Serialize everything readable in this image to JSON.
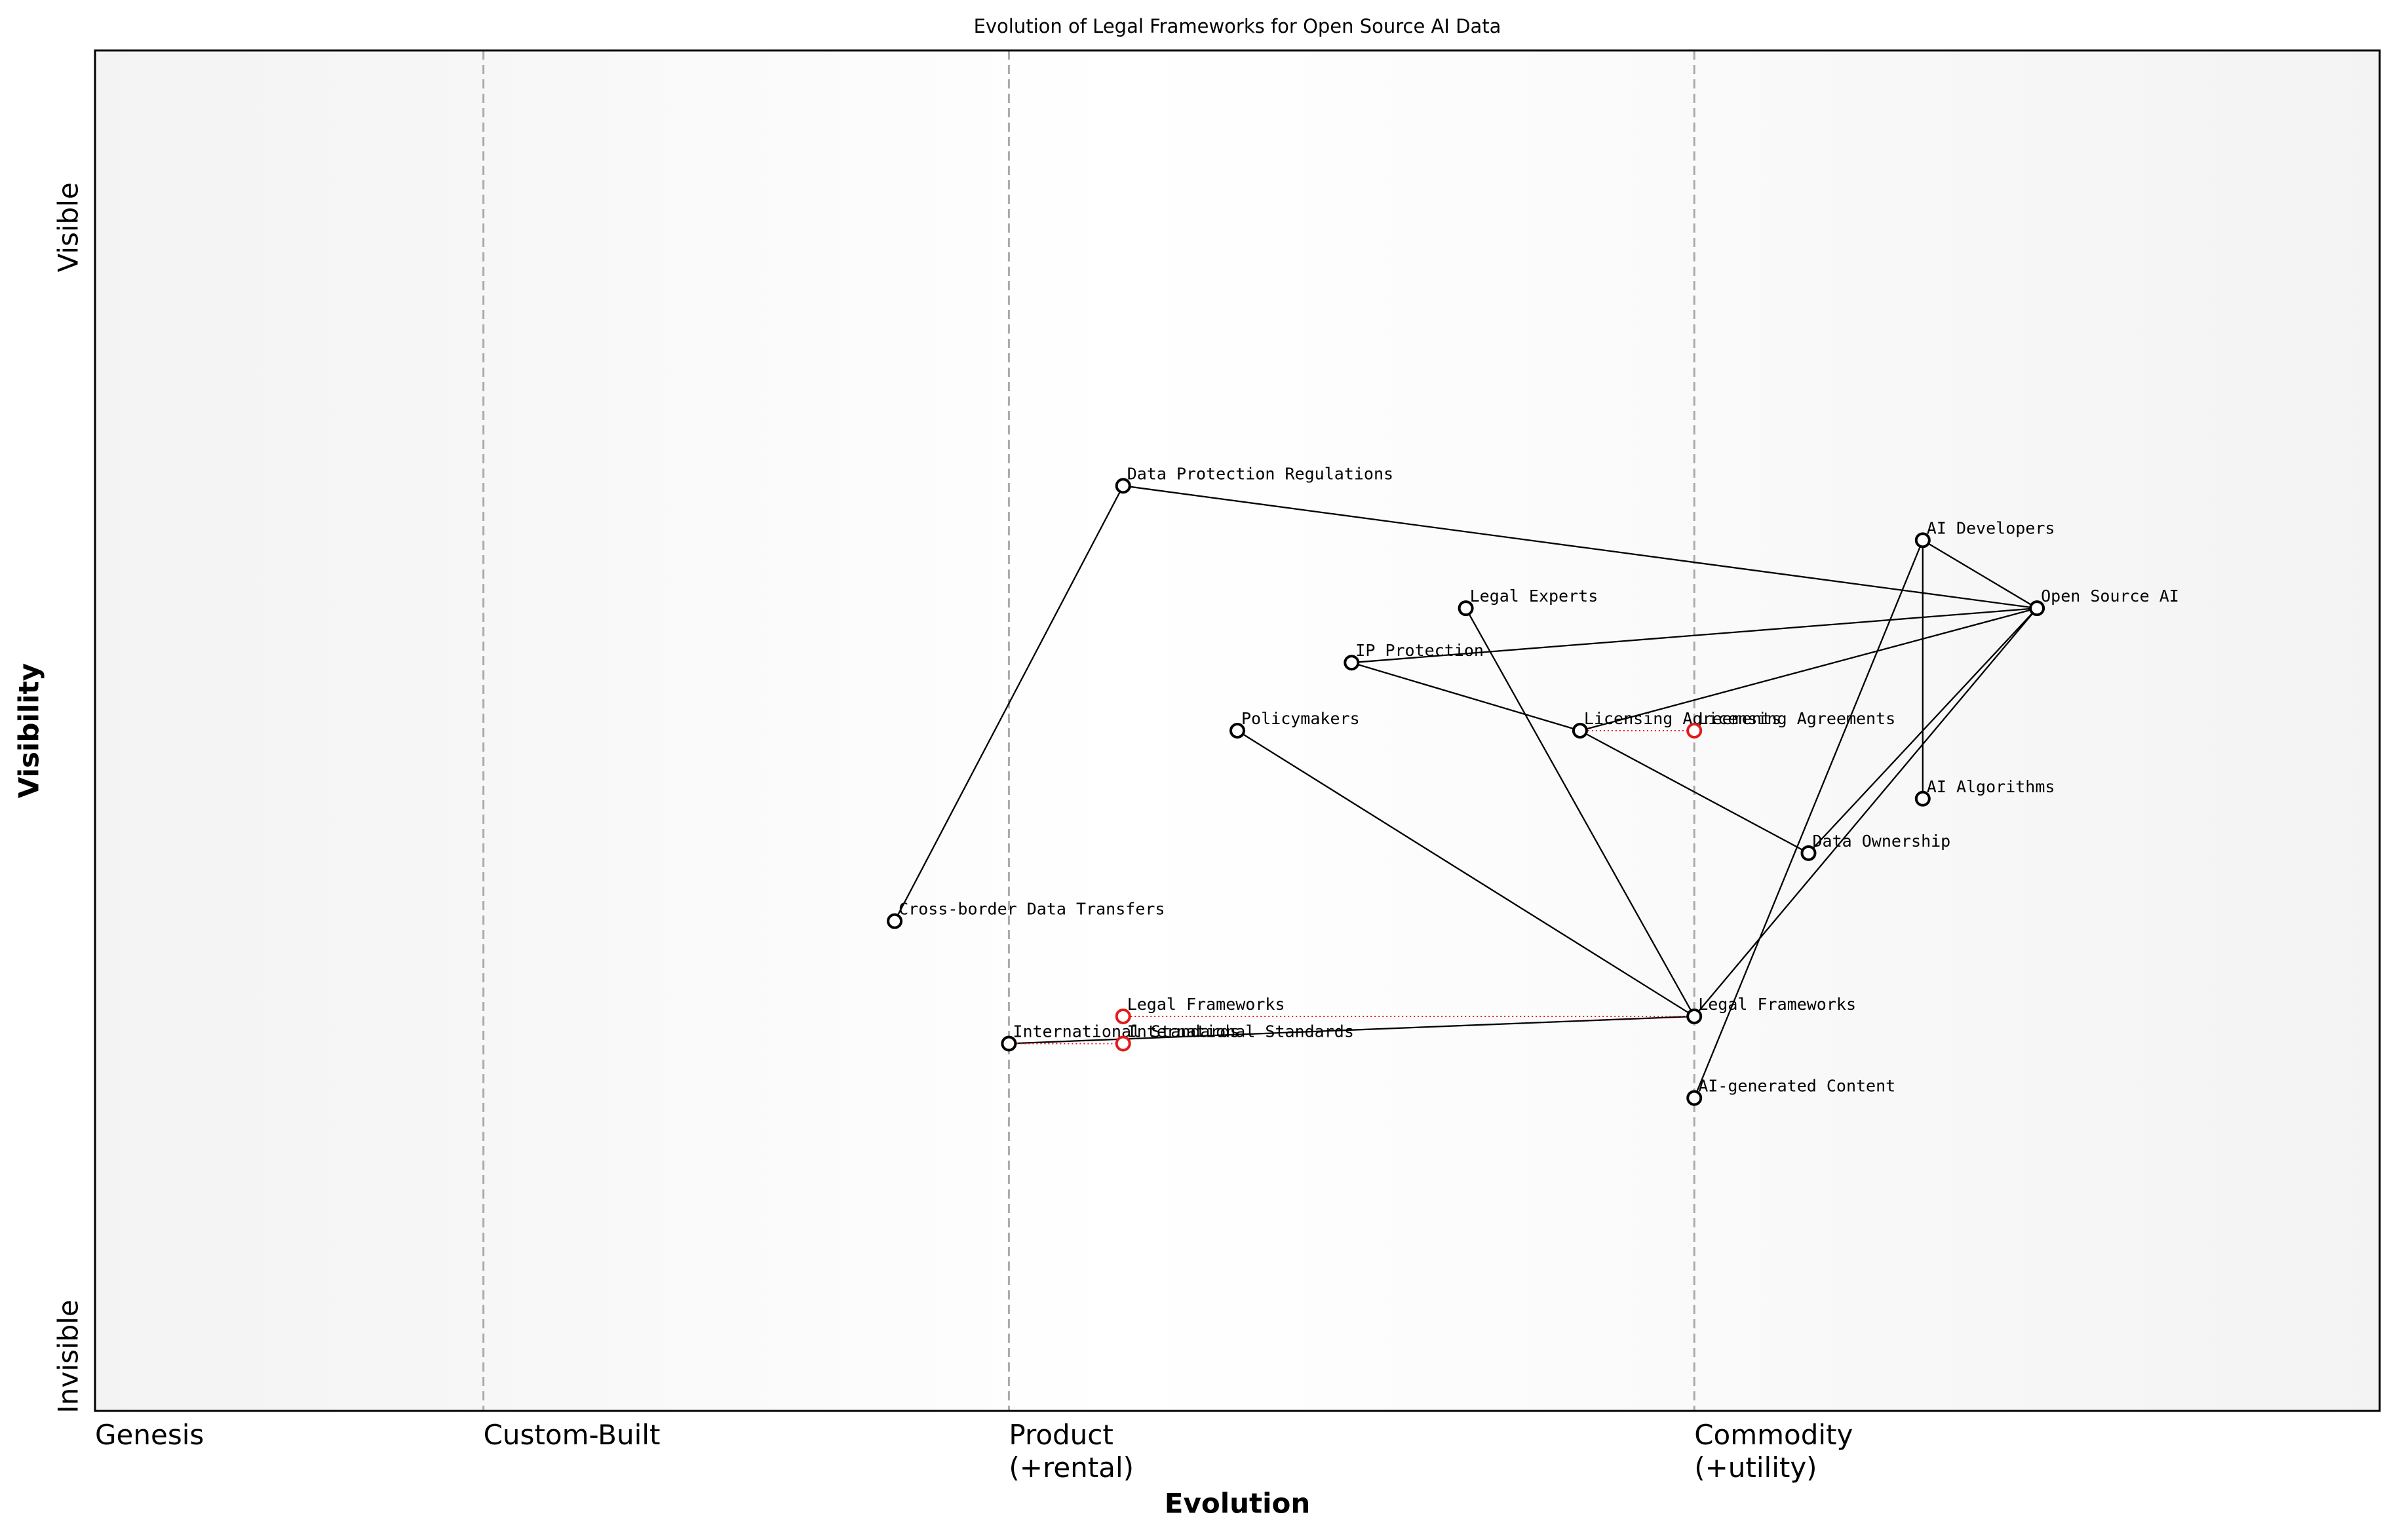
{
  "chart_data": {
    "type": "wardley",
    "title": "Evolution of Legal Frameworks for Open Source AI Data",
    "xlabel": "Evolution",
    "ylabel": "Visibility",
    "xlim": [
      0,
      1
    ],
    "ylim": [
      0,
      1
    ],
    "xticks": [
      {
        "value": 0,
        "label": "Genesis"
      },
      {
        "value": 0.17,
        "label": "Custom-Built"
      },
      {
        "value": 0.4,
        "label": "Product\n(+rental)"
      },
      {
        "value": 0.7,
        "label": "Commodity\n(+utility)"
      }
    ],
    "yticks": [
      {
        "value": 0.04,
        "label": "Invisible"
      },
      {
        "value": 0.87,
        "label": "Visible"
      }
    ],
    "nodes": [
      {
        "name": "Data Protection Regulations",
        "x": 0.45,
        "y": 0.68
      },
      {
        "name": "AI Developers",
        "x": 0.8,
        "y": 0.64
      },
      {
        "name": "Open Source AI",
        "x": 0.85,
        "y": 0.59
      },
      {
        "name": "Legal Experts",
        "x": 0.6,
        "y": 0.59
      },
      {
        "name": "IP Protection",
        "x": 0.55,
        "y": 0.55
      },
      {
        "name": "Policymakers",
        "x": 0.5,
        "y": 0.5
      },
      {
        "name": "Licensing Agreements",
        "x": 0.65,
        "y": 0.5
      },
      {
        "name": "AI Algorithms",
        "x": 0.8,
        "y": 0.45
      },
      {
        "name": "Data Ownership",
        "x": 0.75,
        "y": 0.41
      },
      {
        "name": "Cross-border Data Transfers",
        "x": 0.35,
        "y": 0.36
      },
      {
        "name": "Legal Frameworks",
        "x": 0.7,
        "y": 0.29
      },
      {
        "name": "International Standards",
        "x": 0.4,
        "y": 0.27
      },
      {
        "name": "AI-generated Content",
        "x": 0.7,
        "y": 0.23
      }
    ],
    "links": [
      [
        "Data Protection Regulations",
        "Open Source AI"
      ],
      [
        "Data Protection Regulations",
        "Cross-border Data Transfers"
      ],
      [
        "AI Developers",
        "Open Source AI"
      ],
      [
        "AI Developers",
        "AI Algorithms"
      ],
      [
        "AI Developers",
        "AI-generated Content"
      ],
      [
        "Open Source AI",
        "IP Protection"
      ],
      [
        "Open Source AI",
        "Licensing Agreements"
      ],
      [
        "Open Source AI",
        "Data Ownership"
      ],
      [
        "Open Source AI",
        "Legal Frameworks"
      ],
      [
        "IP Protection",
        "Licensing Agreements"
      ],
      [
        "Licensing Agreements",
        "Data Ownership"
      ],
      [
        "Legal Experts",
        "Legal Frameworks"
      ],
      [
        "Policymakers",
        "Legal Frameworks"
      ],
      [
        "Legal Frameworks",
        "International Standards"
      ]
    ],
    "evolve": [
      {
        "name": "Licensing Agreements",
        "x": 0.7
      },
      {
        "name": "Legal Frameworks",
        "x": 0.45
      },
      {
        "name": "International Standards",
        "x": 0.45
      }
    ],
    "node_color": "#000000",
    "evolve_color": "#e31a1c",
    "link_color": "#000000"
  }
}
